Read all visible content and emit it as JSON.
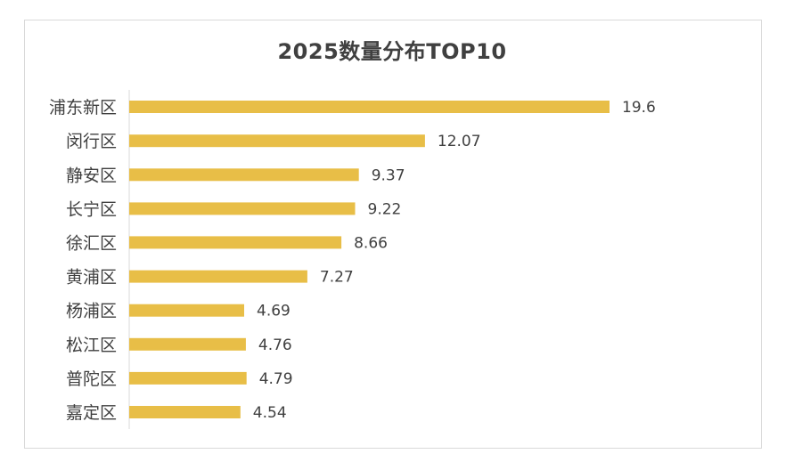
{
  "chart_data": {
    "type": "bar",
    "orientation": "horizontal",
    "title": "2025数量分布TOP10",
    "categories": [
      "浦东新区",
      "闵行区",
      "静安区",
      "长宁区",
      "徐汇区",
      "黄浦区",
      "杨浦区",
      "松江区",
      "普陀区",
      "嘉定区"
    ],
    "values": [
      19.6,
      12.07,
      9.37,
      9.22,
      8.66,
      7.27,
      4.69,
      4.76,
      4.79,
      4.54
    ],
    "value_labels": [
      "19.6",
      "12.07",
      "9.37",
      "9.22",
      "8.66",
      "7.27",
      "4.69",
      "4.76",
      "4.79",
      "4.54"
    ],
    "xlim": [
      0,
      20
    ],
    "xlabel": "",
    "ylabel": "",
    "grid": false,
    "legend": "none",
    "bar_color": "#e8be47",
    "axis_color": "#d9d9d9"
  }
}
